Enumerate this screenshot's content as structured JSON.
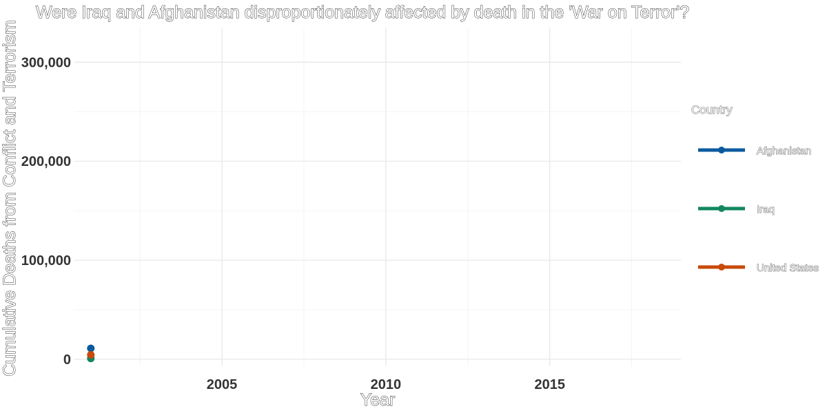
{
  "chart_data": {
    "type": "line",
    "title": "Were Iraq and Afghanistan disproportionately affected by death in the 'War on Terror'?",
    "xlabel": "Year",
    "ylabel": "Cumulative Deaths from Conflict and Terrorism",
    "xlim": [
      2000.5,
      2019
    ],
    "ylim": [
      -7000,
      335000
    ],
    "x_ticks": [
      2005,
      2010,
      2015
    ],
    "x_tick_labels": [
      "2005",
      "2010",
      "2015"
    ],
    "y_ticks": [
      0,
      100000,
      200000,
      300000
    ],
    "y_tick_labels": [
      "0",
      "100,000",
      "200,000",
      "300,000"
    ],
    "grid": true,
    "legend": {
      "title": "Country",
      "position": "right"
    },
    "series": [
      {
        "name": "Afghanistan",
        "color": "#0c5a9e",
        "points": [
          {
            "x": 2001,
            "y": 11000
          }
        ]
      },
      {
        "name": "Iraq",
        "color": "#12875f",
        "points": [
          {
            "x": 2001,
            "y": 800
          }
        ]
      },
      {
        "name": "United States",
        "color": "#c94a0a",
        "points": [
          {
            "x": 2001,
            "y": 4500
          }
        ]
      }
    ]
  }
}
